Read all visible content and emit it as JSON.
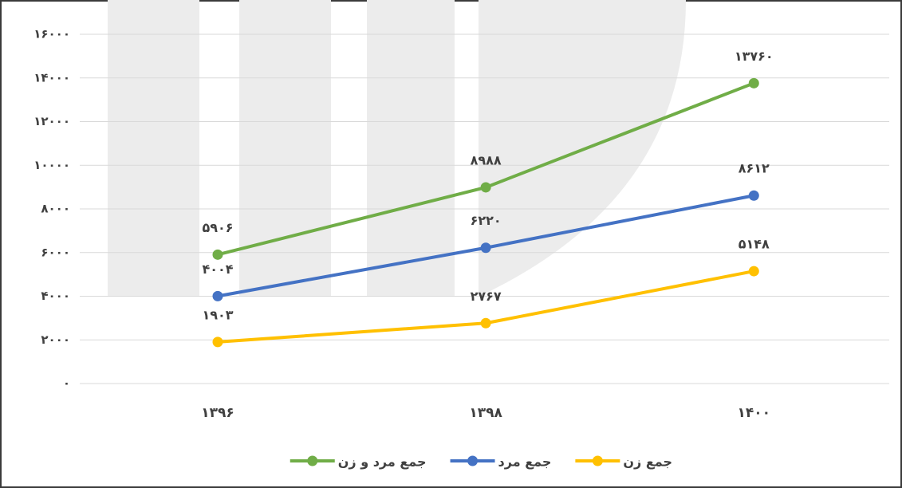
{
  "chart_data": {
    "type": "line",
    "categories": [
      "۱۳۹۶",
      "۱۳۹۸",
      "۱۴۰۰"
    ],
    "series": [
      {
        "name": "جمع زن",
        "color": "#ffc000",
        "values": [
          1903,
          2767,
          5148
        ],
        "value_labels": [
          "۱۹۰۳",
          "۲۷۶۷",
          "۵۱۴۸"
        ]
      },
      {
        "name": "جمع مرد",
        "color": "#4472c4",
        "values": [
          4004,
          6220,
          8612
        ],
        "value_labels": [
          "۴۰۰۴",
          "۶۲۲۰",
          "۸۶۱۲"
        ]
      },
      {
        "name": "جمع مرد و زن",
        "color": "#70ad47",
        "values": [
          5906,
          8988,
          13760
        ],
        "value_labels": [
          "۵۹۰۶",
          "۸۹۸۸",
          "۱۳۷۶۰"
        ]
      }
    ],
    "ylim": [
      0,
      16000
    ],
    "yticks": [
      {
        "value": 0,
        "label": "۰"
      },
      {
        "value": 2000,
        "label": "۲۰۰۰"
      },
      {
        "value": 4000,
        "label": "۴۰۰۰"
      },
      {
        "value": 6000,
        "label": "۶۰۰۰"
      },
      {
        "value": 8000,
        "label": "۸۰۰۰"
      },
      {
        "value": 10000,
        "label": "۱۰۰۰۰"
      },
      {
        "value": 12000,
        "label": "۱۲۰۰۰"
      },
      {
        "value": 14000,
        "label": "۱۴۰۰۰"
      },
      {
        "value": 16000,
        "label": "۱۶۰۰۰"
      }
    ],
    "grid": true,
    "legend": "bottom"
  }
}
